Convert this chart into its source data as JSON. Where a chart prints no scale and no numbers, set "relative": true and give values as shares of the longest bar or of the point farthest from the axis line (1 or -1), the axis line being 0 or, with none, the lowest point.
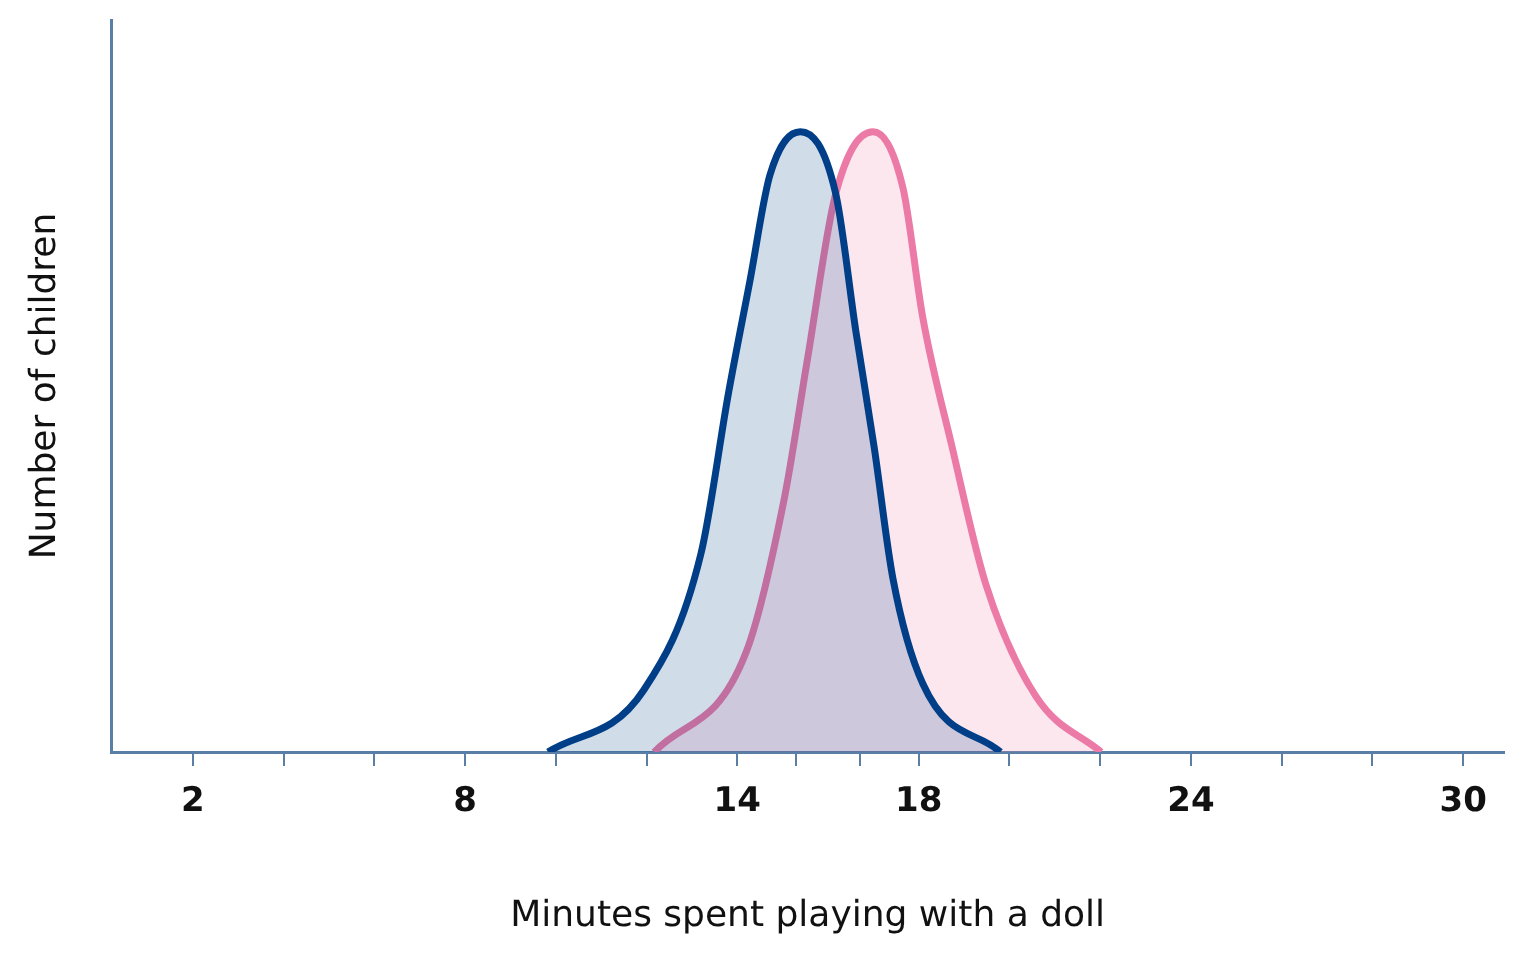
{
  "chart_data": {
    "type": "area",
    "relative": true,
    "xlabel": "Minutes spent playing with a doll",
    "ylabel": "Number of children",
    "xlim": [
      0.2,
      30.9
    ],
    "xticks": [
      2,
      {
        "value": 4,
        "label": null
      },
      {
        "value": 6,
        "label": null
      },
      8,
      {
        "value": 10,
        "label": null
      },
      {
        "value": 12,
        "label": null
      },
      14,
      {
        "value": 15.3,
        "label": null
      },
      {
        "value": 16.7,
        "label": null
      },
      18,
      {
        "value": 20,
        "label": null
      },
      {
        "value": 22,
        "label": null
      },
      24,
      {
        "value": 26,
        "label": null
      },
      {
        "value": 28,
        "label": null
      },
      30
    ],
    "grid": false,
    "series": [
      {
        "color": "#003f87",
        "x": [
          9.83,
          11.94,
          13.2,
          13.81,
          14.28,
          14.72,
          15.39,
          16.17,
          16.61,
          17.02,
          17.43,
          18.09,
          19.8
        ],
        "values": [
          0,
          0.1,
          0.32,
          0.58,
          0.76,
          0.93,
          1,
          0.9,
          0.68,
          0.49,
          0.28,
          0.11,
          0
        ]
      },
      {
        "color": "#ec7aa6",
        "x": [
          12.17,
          14.19,
          15.04,
          15.54,
          16.17,
          16.99,
          17.65,
          18.09,
          18.74,
          19.48,
          20.58,
          22.02
        ],
        "values": [
          0,
          0.16,
          0.41,
          0.63,
          0.9,
          1,
          0.91,
          0.7,
          0.49,
          0.27,
          0.09,
          0
        ]
      }
    ]
  }
}
